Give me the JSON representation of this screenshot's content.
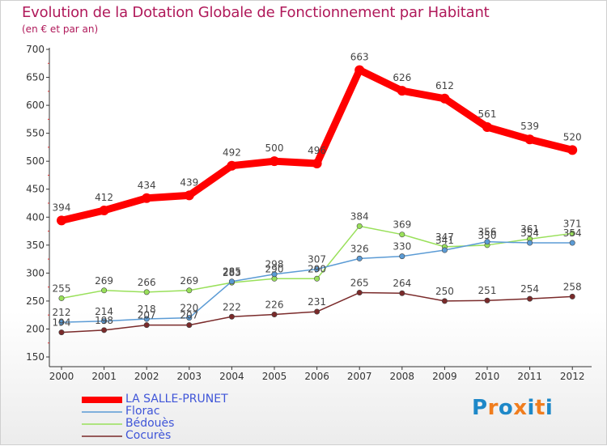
{
  "title": "Evolution de la Dotation Globale de Fonctionnement par Habitant",
  "subtitle": "(en € et par an)",
  "logo": {
    "text": "Proxiti",
    "letter_colors": [
      "#1e88c8",
      "#f07d1e",
      "#1e88c8",
      "#f07d1e",
      "#1e88c8",
      "#f07d1e",
      "#1e88c8"
    ]
  },
  "chart_data": {
    "type": "line",
    "title": "Evolution de la Dotation Globale de Fonctionnement par Habitant",
    "subtitle": "(en € et par an)",
    "xlabel": "",
    "ylabel": "",
    "ylim": [
      150,
      700
    ],
    "yticks": [
      150,
      200,
      250,
      300,
      350,
      400,
      450,
      500,
      550,
      600,
      650,
      700
    ],
    "grid": false,
    "legend_position": "bottom-left",
    "categories": [
      "2000",
      "2001",
      "2002",
      "2003",
      "2004",
      "2005",
      "2006",
      "2007",
      "2008",
      "2009",
      "2010",
      "2011",
      "2012"
    ],
    "series": [
      {
        "name": "LA SALLE-PRUNET",
        "color": "#ff0000",
        "values": [
          394,
          412,
          434,
          439,
          492,
          500,
          496,
          663,
          626,
          612,
          561,
          539,
          520
        ]
      },
      {
        "name": "Florac",
        "color": "#5b9bd5",
        "values": [
          212,
          214,
          218,
          220,
          285,
          298,
          307,
          326,
          330,
          341,
          356,
          354,
          354
        ]
      },
      {
        "name": "Bédouès",
        "color": "#99e05a",
        "values": [
          255,
          269,
          266,
          269,
          283,
          290,
          290,
          384,
          369,
          347,
          350,
          361,
          371
        ]
      },
      {
        "name": "Cocurès",
        "color": "#7a2a2a",
        "values": [
          194,
          198,
          207,
          207,
          222,
          226,
          231,
          265,
          264,
          250,
          251,
          254,
          258
        ]
      }
    ]
  }
}
